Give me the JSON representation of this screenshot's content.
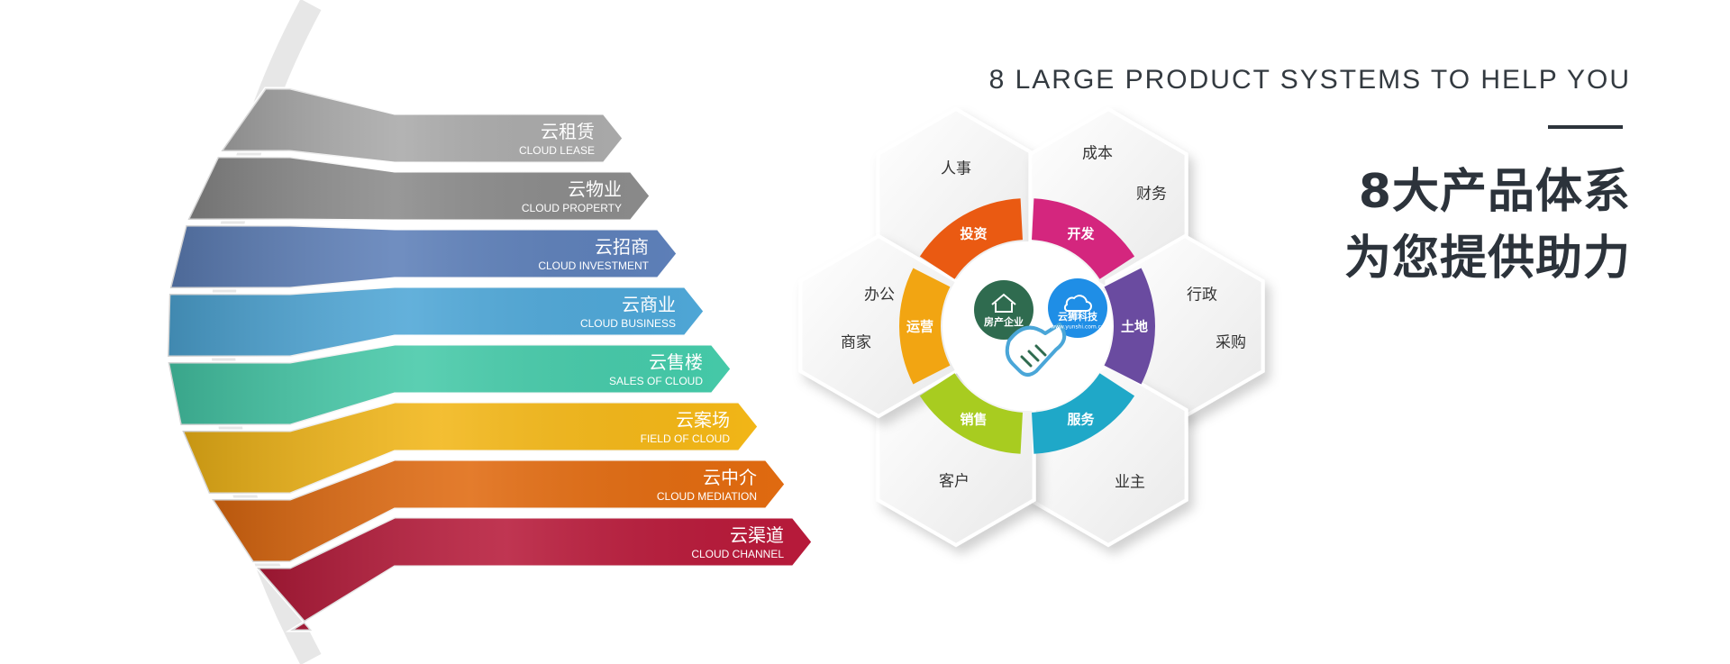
{
  "heading": {
    "en": "8 LARGE PRODUCT SYSTEMS TO HELP YOU",
    "cn_line1": "8大产品体系",
    "cn_line2": "为您提供助力"
  },
  "bands": [
    {
      "cn": "云租赁",
      "en": "CLOUD LEASE",
      "color": "#a9a9a9"
    },
    {
      "cn": "云物业",
      "en": "CLOUD PROPERTY",
      "color": "#8a8a8a"
    },
    {
      "cn": "云招商",
      "en": "CLOUD INVESTMENT",
      "color": "#5d7fb8"
    },
    {
      "cn": "云商业",
      "en": "CLOUD BUSINESS",
      "color": "#4ea6d6"
    },
    {
      "cn": "云售楼",
      "en": "SALES OF CLOUD",
      "color": "#45c9a8"
    },
    {
      "cn": "云案场",
      "en": "FIELD OF CLOUD",
      "color": "#f2b617"
    },
    {
      "cn": "云中介",
      "en": "CLOUD MEDIATION",
      "color": "#e06a10"
    },
    {
      "cn": "云渠道",
      "en": "CLOUD CHANNEL",
      "color": "#b71a3a"
    }
  ],
  "hexagons": [
    {
      "labels": [
        "人事"
      ]
    },
    {
      "labels": [
        "成本",
        "财务"
      ]
    },
    {
      "labels": [
        "行政",
        "采购"
      ]
    },
    {
      "labels": [
        "业主"
      ]
    },
    {
      "labels": [
        "客户"
      ]
    },
    {
      "labels": [
        "办公",
        "商家"
      ]
    }
  ],
  "ring": [
    {
      "label": "投资",
      "color": "#ea5a12"
    },
    {
      "label": "开发",
      "color": "#d4267e"
    },
    {
      "label": "土地",
      "color": "#6a4ba0"
    },
    {
      "label": "服务",
      "color": "#1fa8c8"
    },
    {
      "label": "销售",
      "color": "#a8cc20"
    },
    {
      "label": "运营",
      "color": "#f2a512"
    }
  ],
  "center": {
    "left_label": "房产企业",
    "right_label": "云狮科技",
    "right_url": "www.yunshi.com.cn",
    "left_color": "#2f6b4f",
    "right_color": "#1f8ee6"
  }
}
